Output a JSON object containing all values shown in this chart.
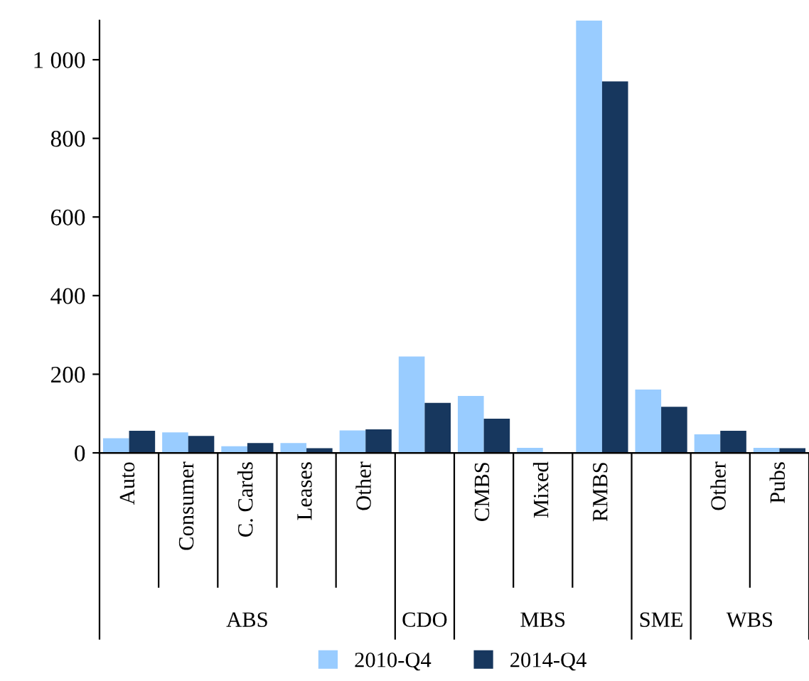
{
  "chart_data": {
    "type": "bar",
    "categories": [
      "Auto",
      "Consumer",
      "C. Cards",
      "Leases",
      "Other",
      null,
      "CMBS",
      "Mixed",
      "RMBS",
      null,
      "Other",
      "Pubs"
    ],
    "series": [
      {
        "name": "2010-Q4",
        "color": "#99ccff",
        "values": [
          37,
          52,
          17,
          25,
          57,
          245,
          145,
          13,
          1100,
          161,
          47,
          13
        ]
      },
      {
        "name": "2014-Q4",
        "color": "#17375e",
        "values": [
          56,
          43,
          25,
          12,
          60,
          127,
          87,
          0,
          945,
          117,
          56,
          12
        ]
      }
    ],
    "ylim": [
      0,
      1100
    ],
    "yticks": [
      0,
      200,
      400,
      600,
      800,
      {
        "value": 1000,
        "label": "1 000"
      }
    ],
    "annotations": [
      "ABS",
      "CDO",
      "MBS",
      "SME",
      "WBS"
    ],
    "grid": false,
    "legend": "bottom"
  }
}
